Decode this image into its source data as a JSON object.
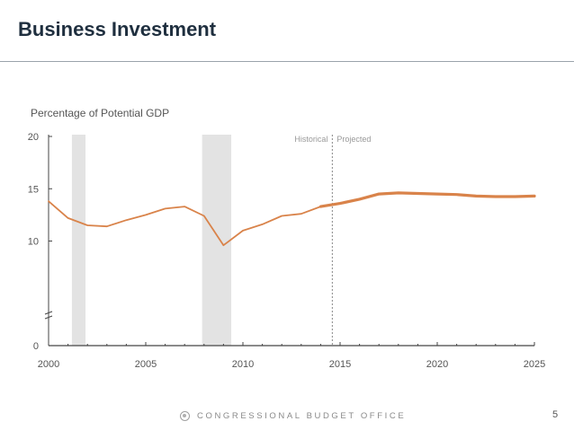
{
  "slide": {
    "title": "Business Investment",
    "footer": "CONGRESSIONAL BUDGET OFFICE",
    "page_number": "5"
  },
  "chart_data": {
    "type": "line",
    "title": "Percentage of Potential GDP",
    "xlabel": "",
    "ylabel": "",
    "xlim": [
      2000,
      2025
    ],
    "ylim": [
      0,
      20
    ],
    "x_ticks": [
      2000,
      2005,
      2010,
      2015,
      2020,
      2025
    ],
    "y_ticks": [
      0,
      10,
      15,
      20
    ],
    "grid": false,
    "divider": {
      "x": 2014.6,
      "left_label": "Historical",
      "right_label": "Projected"
    },
    "recessions": [
      {
        "start": 2001.2,
        "end": 2001.9
      },
      {
        "start": 2007.9,
        "end": 2009.4
      }
    ],
    "series": [
      {
        "name": "Historical",
        "x": [
          2000,
          2001,
          2002,
          2003,
          2004,
          2005,
          2006,
          2007,
          2008,
          2009,
          2010,
          2011,
          2012,
          2013,
          2014
        ],
        "values": [
          13.8,
          12.2,
          11.5,
          11.4,
          12.0,
          12.5,
          13.1,
          13.3,
          12.4,
          9.6,
          11.0,
          11.6,
          12.4,
          12.6,
          13.3
        ]
      },
      {
        "name": "Projected",
        "x": [
          2014,
          2015,
          2016,
          2017,
          2018,
          2019,
          2020,
          2021,
          2022,
          2023,
          2024,
          2025
        ],
        "values": [
          13.3,
          13.6,
          14.0,
          14.5,
          14.6,
          14.55,
          14.5,
          14.45,
          14.3,
          14.25,
          14.25,
          14.3
        ]
      }
    ],
    "colors": {
      "line": "#d9834a",
      "recession": "#e3e3e3",
      "axis": "#444444",
      "text": "#555555"
    }
  }
}
